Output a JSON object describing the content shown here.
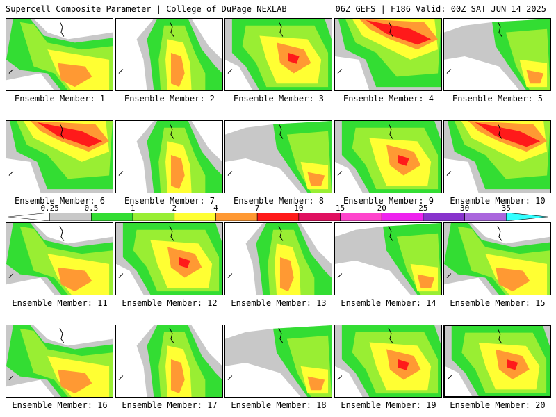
{
  "header": {
    "left": "Supercell Composite Parameter | College of DuPage NEXLAB",
    "right": "06Z GEFS | F186 Valid: 00Z SAT JUN 14 2025"
  },
  "legend": {
    "ticks": [
      "0.25",
      "0.5",
      "1",
      "2",
      "4",
      "7",
      "10",
      "15",
      "20",
      "25",
      "30",
      "35"
    ],
    "colors": [
      "#ffffff",
      "#c8c8c8",
      "#33dd33",
      "#99ee33",
      "#ffff33",
      "#ff9933",
      "#ff1a1a",
      "#e01060",
      "#ff44cc",
      "#ee22ee",
      "#8833cc",
      "#aa66dd",
      "#33ffff"
    ]
  },
  "panels": [
    {
      "label": "Ensemble Member: 1",
      "pattern": 0
    },
    {
      "label": "Ensemble Member: 2",
      "pattern": 1
    },
    {
      "label": "Ensemble Member: 3",
      "pattern": 2
    },
    {
      "label": "Ensemble Member: 4",
      "pattern": 3
    },
    {
      "label": "Ensemble Member: 5",
      "pattern": 4
    },
    {
      "label": "Ensemble Member: 6",
      "pattern": 3
    },
    {
      "label": "Ensemble Member: 7",
      "pattern": 1
    },
    {
      "label": "Ensemble Member: 8",
      "pattern": 4
    },
    {
      "label": "Ensemble Member: 9",
      "pattern": 2
    },
    {
      "label": "Ensemble Member: 10",
      "pattern": 3
    },
    {
      "label": "Ensemble Member: 11",
      "pattern": 0
    },
    {
      "label": "Ensemble Member: 12",
      "pattern": 2
    },
    {
      "label": "Ensemble Member: 13",
      "pattern": 1
    },
    {
      "label": "Ensemble Member: 14",
      "pattern": 4
    },
    {
      "label": "Ensemble Member: 15",
      "pattern": 0
    },
    {
      "label": "Ensemble Member: 16",
      "pattern": 0
    },
    {
      "label": "Ensemble Member: 17",
      "pattern": 1
    },
    {
      "label": "Ensemble Member: 18",
      "pattern": 4
    },
    {
      "label": "Ensemble Member: 19",
      "pattern": 2
    },
    {
      "label": "Ensemble Member: 20",
      "pattern": 2,
      "selected": true
    }
  ]
}
